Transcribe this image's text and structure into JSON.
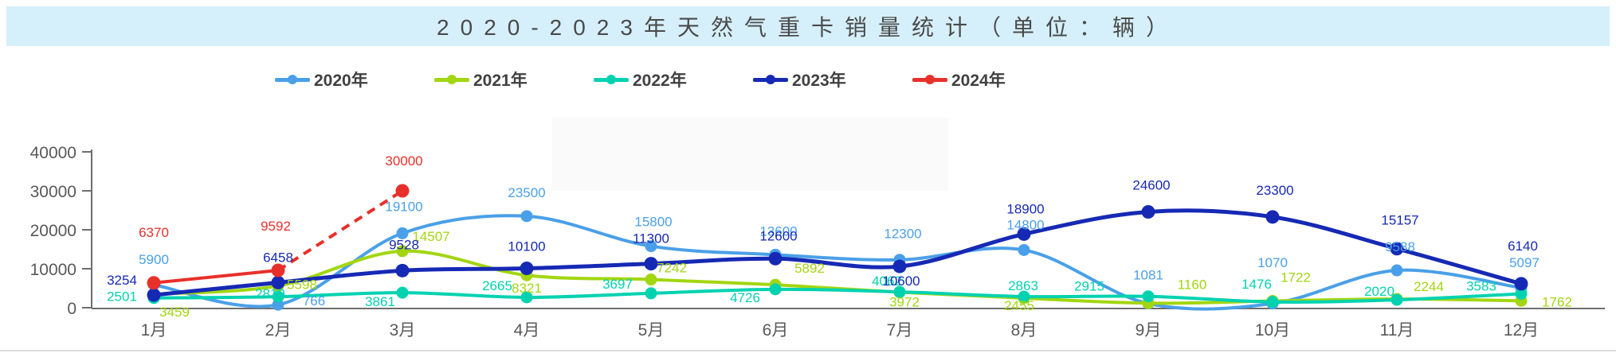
{
  "title": {
    "text": "2020-2023年天然气重卡销量统计（单位：辆）",
    "bar_color": "#d6f0fb",
    "text_color": "#4a4a4a"
  },
  "legend": [
    {
      "label": "2020年",
      "color": "#4aa0e8"
    },
    {
      "label": "2021年",
      "color": "#a2d611"
    },
    {
      "label": "2022年",
      "color": "#00d2b0"
    },
    {
      "label": "2023年",
      "color": "#1629b4"
    },
    {
      "label": "2024年",
      "color": "#e8302a"
    }
  ],
  "axis": {
    "y_ticks": [
      "0",
      "10000",
      "20000",
      "30000",
      "40000"
    ],
    "text_color": "#595959",
    "line_color": "#6e6e6e"
  },
  "chart_data": {
    "type": "line",
    "title": "2020-2023年天然气重卡销量统计（单位：辆）",
    "categories": [
      "1月",
      "2月",
      "3月",
      "4月",
      "5月",
      "6月",
      "7月",
      "8月",
      "9月",
      "10月",
      "11月",
      "12月"
    ],
    "xlabel": "",
    "ylabel": "",
    "ylim": [
      0,
      40000
    ],
    "y_ticks": [
      0,
      10000,
      20000,
      30000,
      40000
    ],
    "grid": false,
    "legend_position": "top",
    "smooth": true,
    "series": [
      {
        "name": "2020年",
        "color": "#4aa0e8",
        "style": "solid",
        "line_width": 4,
        "values": [
          5900,
          766,
          19100,
          23500,
          15800,
          13600,
          12300,
          14800,
          1081,
          1070,
          9588,
          5097
        ]
      },
      {
        "name": "2021年",
        "color": "#a2d611",
        "style": "solid",
        "line_width": 4,
        "values": [
          3459,
          5598,
          14507,
          8321,
          7242,
          5892,
          3972,
          2455,
          1160,
          1722,
          2244,
          1762
        ]
      },
      {
        "name": "2022年",
        "color": "#00d2b0",
        "style": "solid",
        "line_width": 4,
        "values": [
          2501,
          2819,
          3861,
          2665,
          3697,
          4726,
          4062,
          2863,
          2915,
          1476,
          2020,
          3583
        ]
      },
      {
        "name": "2023年",
        "color": "#1629b4",
        "style": "solid",
        "line_width": 5,
        "values": [
          3254,
          6458,
          9528,
          10100,
          11300,
          12600,
          10600,
          18900,
          24600,
          23300,
          15157,
          6140
        ]
      },
      {
        "name": "2024年",
        "color": "#e8302a",
        "style": "solid_then_dashed",
        "dash_from": 1,
        "line_width": 4,
        "values": [
          6370,
          9592,
          30000
        ]
      }
    ],
    "label_offsets": {
      "2020年": [
        [
          0,
          -26
        ],
        [
          45,
          1
        ],
        [
          2,
          -28
        ],
        [
          0,
          -24
        ],
        [
          3,
          -25
        ],
        [
          4,
          -24
        ],
        [
          4,
          -27
        ],
        [
          2,
          -26
        ],
        [
          0,
          -30
        ],
        [
          0,
          -46
        ],
        [
          4,
          -24
        ],
        [
          4,
          -26
        ]
      ],
      "2021年": [
        [
          26,
          28
        ],
        [
          30,
          4
        ],
        [
          36,
          -13
        ],
        [
          0,
          22
        ],
        [
          26,
          -9
        ],
        [
          43,
          -15
        ],
        [
          6,
          18
        ],
        [
          -6,
          15
        ],
        [
          55,
          -18
        ],
        [
          29,
          -24
        ],
        [
          40,
          -10
        ],
        [
          45,
          7
        ]
      ],
      "2022年": [
        [
          -40,
          4
        ],
        [
          -10,
          2
        ],
        [
          -28,
          17
        ],
        [
          -37,
          -9
        ],
        [
          -42,
          -6
        ],
        [
          -38,
          16
        ],
        [
          -16,
          -8
        ],
        [
          -1,
          -8
        ],
        [
          -74,
          -7
        ],
        [
          -20,
          -17
        ],
        [
          -22,
          -5
        ],
        [
          -50,
          -4
        ]
      ],
      "2023年": [
        [
          -40,
          -13
        ],
        [
          0,
          -26
        ],
        [
          2,
          -27
        ],
        [
          0,
          -22
        ],
        [
          0,
          -26
        ],
        [
          4,
          -23
        ],
        [
          2,
          24
        ],
        [
          2,
          -26
        ],
        [
          4,
          -28
        ],
        [
          3,
          -28
        ],
        [
          4,
          -30
        ],
        [
          2,
          -42
        ]
      ],
      "2024年": [
        [
          0,
          -58
        ],
        [
          -3,
          -50
        ],
        [
          2,
          -32
        ]
      ]
    }
  }
}
